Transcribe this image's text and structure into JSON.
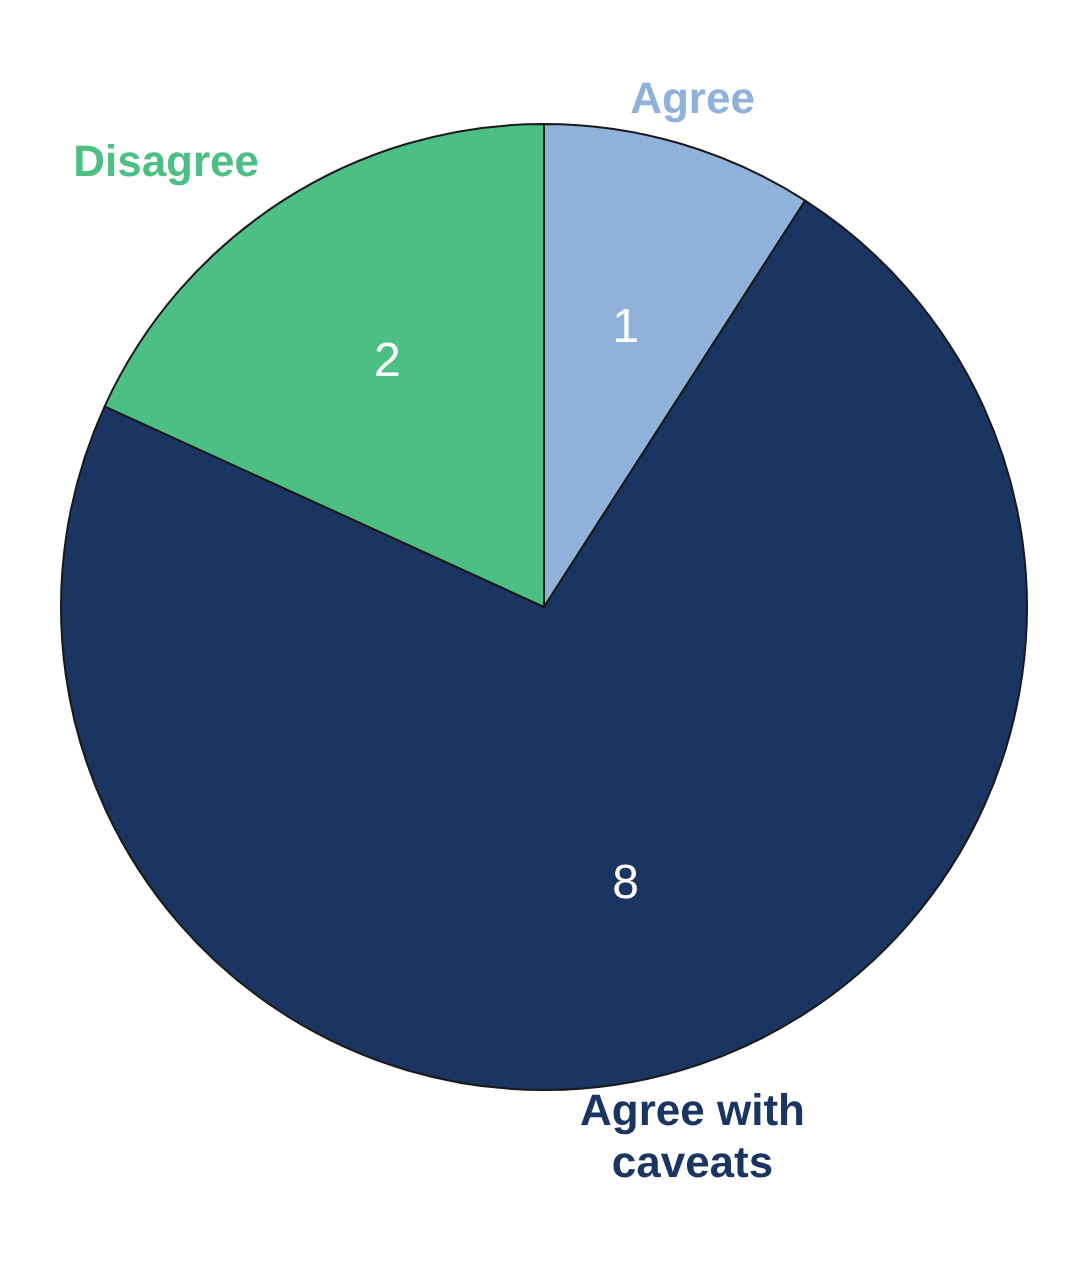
{
  "chart_data": {
    "type": "pie",
    "categories": [
      "Agree",
      "Agree with caveats",
      "Disagree"
    ],
    "values": [
      1,
      8,
      2
    ],
    "colors": [
      "#8fb1da",
      "#1b3562",
      "#4cbf85"
    ],
    "data_labels": true,
    "legend": false
  }
}
